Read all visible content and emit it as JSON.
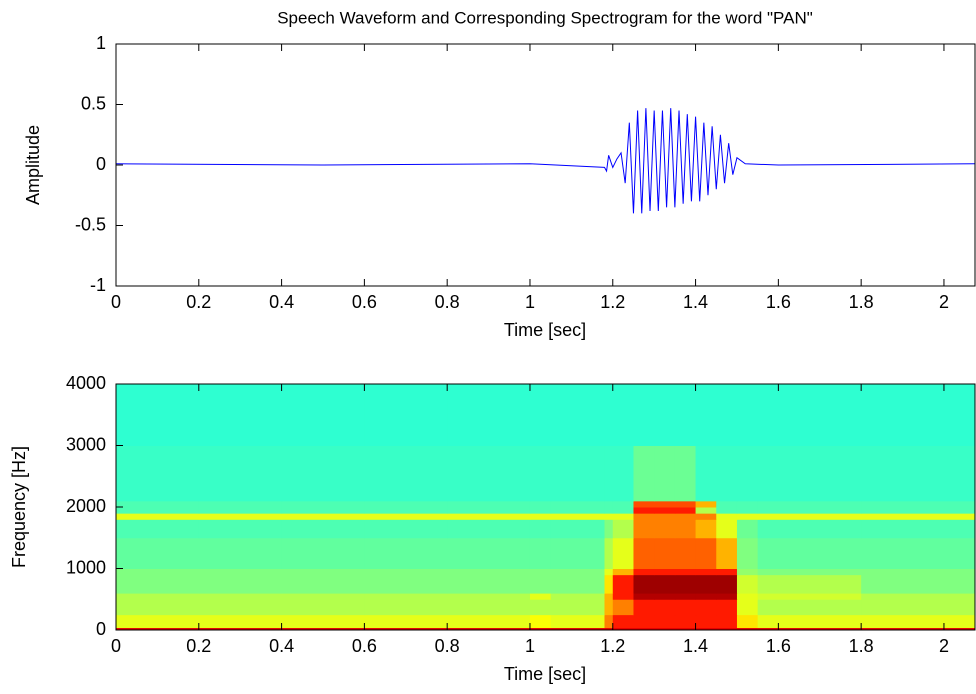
{
  "chart_data": [
    {
      "type": "line",
      "title": "Speech Waveform and Corresponding Spectrogram for the word \"PAN\"",
      "x_label": "Time [sec]",
      "y_label": "Amplitude",
      "x": [
        0,
        0.5,
        1.0,
        1.18,
        1.185,
        1.19,
        1.2,
        1.21,
        1.22,
        1.23,
        1.24,
        1.25,
        1.26,
        1.27,
        1.28,
        1.29,
        1.3,
        1.31,
        1.32,
        1.33,
        1.34,
        1.35,
        1.36,
        1.37,
        1.38,
        1.39,
        1.4,
        1.41,
        1.42,
        1.43,
        1.44,
        1.45,
        1.46,
        1.47,
        1.48,
        1.49,
        1.5,
        1.52,
        1.6,
        2.075
      ],
      "series": [
        {
          "color": "#0000ff",
          "values": [
            0.01,
            0.0,
            0.01,
            -0.02,
            -0.05,
            0.08,
            -0.02,
            0.05,
            0.1,
            -0.15,
            0.35,
            -0.4,
            0.45,
            -0.4,
            0.47,
            -0.38,
            0.45,
            -0.38,
            0.45,
            -0.35,
            0.47,
            -0.35,
            0.45,
            -0.32,
            0.42,
            -0.3,
            0.4,
            -0.3,
            0.35,
            -0.25,
            0.32,
            -0.2,
            0.25,
            -0.15,
            0.18,
            -0.08,
            0.06,
            0.01,
            0.0,
            0.01
          ]
        }
      ],
      "xlim": [
        0,
        2.075
      ],
      "ylim": [
        -1,
        1
      ],
      "xticks": [
        0,
        0.2,
        0.4,
        0.6,
        0.8,
        1,
        1.2,
        1.4,
        1.6,
        1.8,
        2
      ],
      "yticks": [
        -1,
        -0.5,
        0,
        0.5,
        1
      ]
    },
    {
      "type": "heatmap",
      "x_label": "Time [sec]",
      "y_label": "Frequency [Hz]",
      "colormap": "jet",
      "x_edges": [
        0,
        0.2,
        0.4,
        0.6,
        0.8,
        1.0,
        1.05,
        1.18,
        1.2,
        1.25,
        1.3,
        1.35,
        1.4,
        1.45,
        1.5,
        1.55,
        1.8,
        2.075
      ],
      "y_edges": [
        0,
        40,
        250,
        500,
        600,
        900,
        1000,
        1500,
        1800,
        1900,
        2000,
        2100,
        3000,
        4000
      ],
      "z": [
        [
          0.9,
          0.9,
          0.9,
          0.9,
          0.9,
          0.9,
          0.9,
          0.9,
          0.9,
          0.9,
          0.9,
          0.9,
          0.9,
          0.9,
          0.9,
          0.9,
          0.9
        ],
        [
          0.6,
          0.6,
          0.6,
          0.6,
          0.6,
          0.62,
          0.6,
          0.75,
          0.85,
          0.85,
          0.85,
          0.85,
          0.85,
          0.85,
          0.65,
          0.6,
          0.6
        ],
        [
          0.55,
          0.55,
          0.55,
          0.55,
          0.55,
          0.55,
          0.55,
          0.7,
          0.75,
          0.85,
          0.85,
          0.85,
          0.85,
          0.85,
          0.6,
          0.55,
          0.55
        ],
        [
          0.55,
          0.55,
          0.55,
          0.55,
          0.55,
          0.6,
          0.55,
          0.7,
          0.85,
          0.95,
          0.95,
          0.95,
          0.95,
          0.95,
          0.6,
          0.58,
          0.55
        ],
        [
          0.5,
          0.5,
          0.5,
          0.5,
          0.5,
          0.5,
          0.5,
          0.65,
          0.85,
          0.97,
          0.97,
          0.97,
          0.97,
          0.97,
          0.58,
          0.55,
          0.5
        ],
        [
          0.5,
          0.5,
          0.5,
          0.5,
          0.5,
          0.5,
          0.5,
          0.6,
          0.7,
          0.85,
          0.85,
          0.85,
          0.85,
          0.85,
          0.52,
          0.5,
          0.5
        ],
        [
          0.47,
          0.47,
          0.47,
          0.47,
          0.47,
          0.47,
          0.47,
          0.55,
          0.6,
          0.78,
          0.78,
          0.78,
          0.78,
          0.7,
          0.5,
          0.47,
          0.47
        ],
        [
          0.45,
          0.45,
          0.45,
          0.45,
          0.45,
          0.45,
          0.45,
          0.5,
          0.55,
          0.75,
          0.75,
          0.75,
          0.7,
          0.6,
          0.48,
          0.45,
          0.45
        ],
        [
          0.6,
          0.6,
          0.6,
          0.6,
          0.6,
          0.6,
          0.6,
          0.6,
          0.6,
          0.75,
          0.75,
          0.75,
          0.75,
          0.6,
          0.6,
          0.6,
          0.6
        ],
        [
          0.45,
          0.45,
          0.45,
          0.45,
          0.45,
          0.45,
          0.45,
          0.45,
          0.45,
          0.85,
          0.85,
          0.85,
          0.55,
          0.45,
          0.45,
          0.45,
          0.45
        ],
        [
          0.45,
          0.45,
          0.45,
          0.45,
          0.45,
          0.45,
          0.45,
          0.45,
          0.45,
          0.8,
          0.8,
          0.8,
          0.7,
          0.45,
          0.45,
          0.45,
          0.45
        ],
        [
          0.43,
          0.43,
          0.43,
          0.43,
          0.43,
          0.43,
          0.43,
          0.43,
          0.43,
          0.48,
          0.48,
          0.48,
          0.43,
          0.43,
          0.43,
          0.43,
          0.43
        ],
        [
          0.42,
          0.42,
          0.42,
          0.42,
          0.42,
          0.42,
          0.42,
          0.42,
          0.42,
          0.42,
          0.42,
          0.42,
          0.42,
          0.42,
          0.42,
          0.42,
          0.42
        ]
      ],
      "xlim": [
        0,
        2.075
      ],
      "ylim": [
        0,
        4000
      ],
      "xticks": [
        0,
        0.2,
        0.4,
        0.6,
        0.8,
        1,
        1.2,
        1.4,
        1.6,
        1.8,
        2
      ],
      "yticks": [
        0,
        1000,
        2000,
        3000,
        4000
      ]
    }
  ]
}
